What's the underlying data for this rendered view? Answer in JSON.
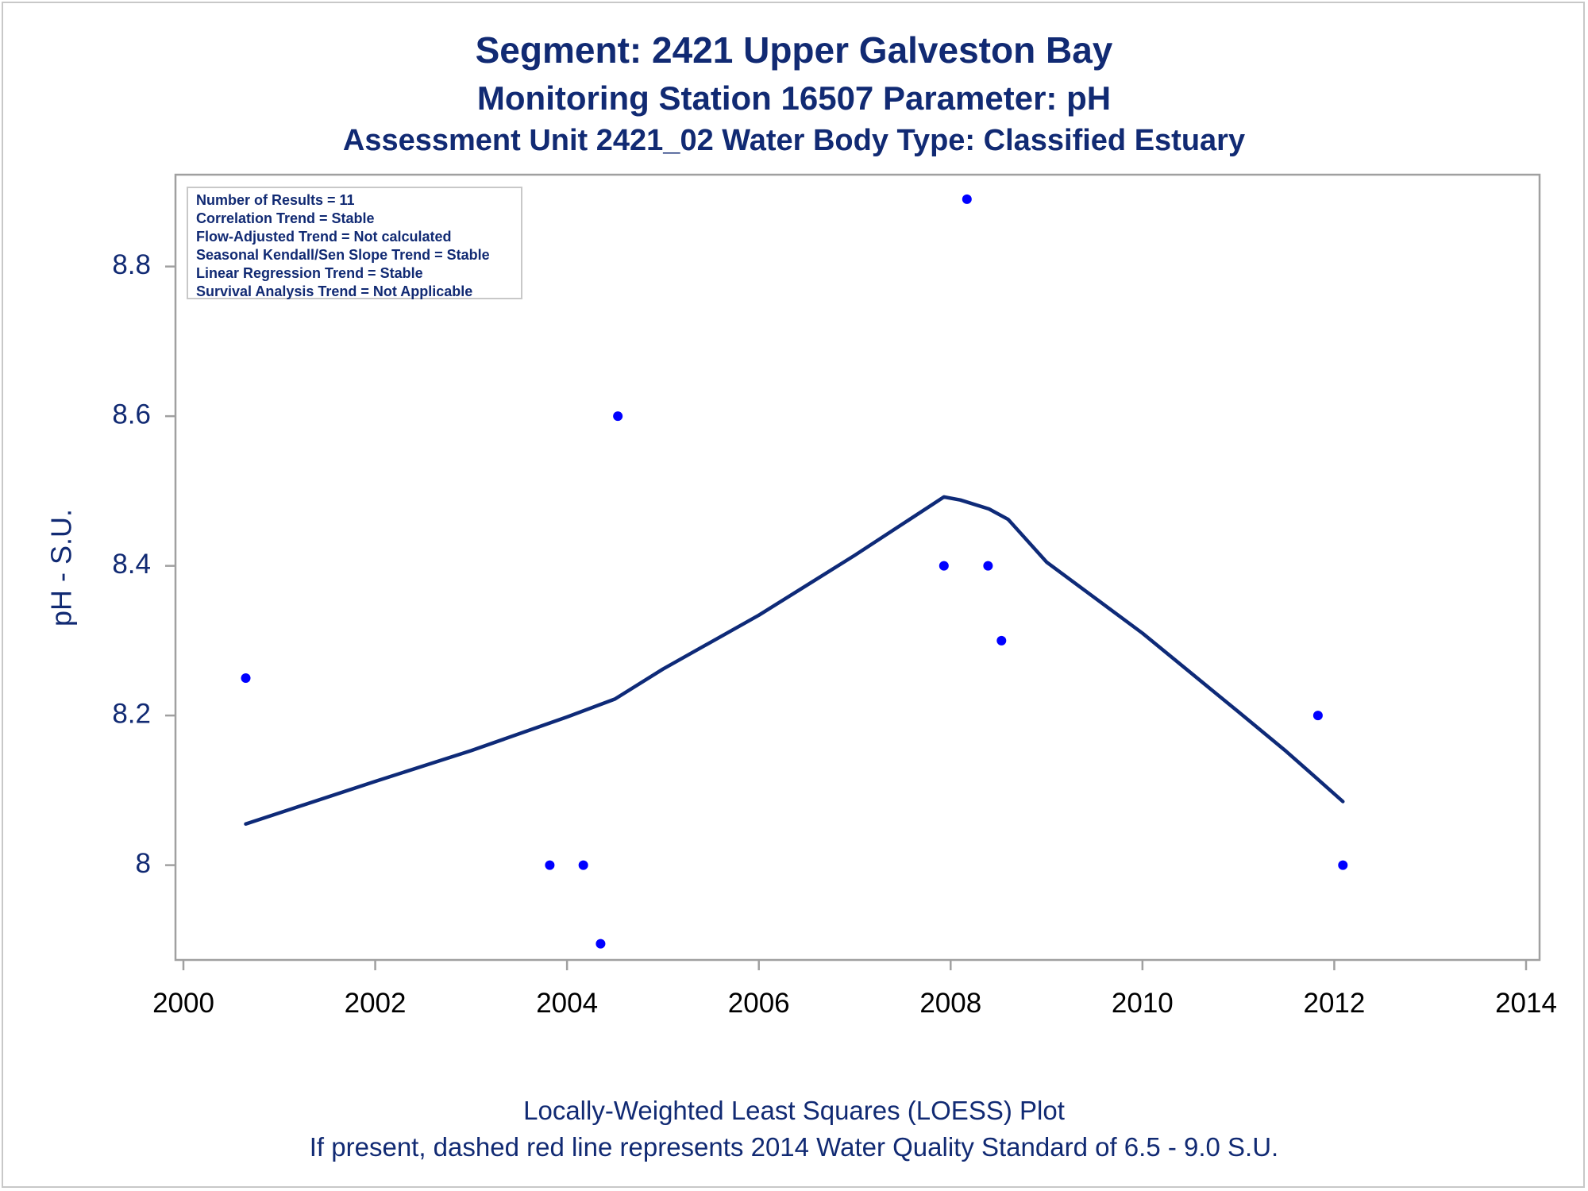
{
  "chart_data": {
    "type": "scatter",
    "title": "Segment: 2421  Upper Galveston Bay",
    "subtitle": "Monitoring Station 16507 Parameter: pH",
    "subtitle2": "Assessment Unit 2421_02   Water Body Type: Classified Estuary",
    "xlabel": "",
    "ylabel": "pH - S.U.",
    "footnote1": "Locally-Weighted Least Squares (LOESS) Plot",
    "footnote2": "If present, dashed red line represents 2014 Water Quality Standard of 6.5 - 9.0 S.U.",
    "xlim": [
      2000,
      2014
    ],
    "ylim": [
      7.885,
      8.91
    ],
    "x_ticks": [
      2000,
      2002,
      2004,
      2006,
      2008,
      2010,
      2012,
      2014
    ],
    "y_ticks": [
      8,
      8.2,
      8.4,
      8.6,
      8.8
    ],
    "y_tick_labels": [
      "8",
      "8.2",
      "8.4",
      "8.6",
      "8.8"
    ],
    "grid": false,
    "stats_box": [
      "Number of Results = 11",
      "Correlation Trend = Stable",
      "Flow-Adjusted Trend = Not calculated",
      "Seasonal Kendall/Sen Slope Trend = Stable",
      "Linear Regression Trend = Stable",
      "Survival Analysis Trend = Not Applicable"
    ],
    "points": [
      {
        "x": 2000.65,
        "y": 8.25
      },
      {
        "x": 2003.82,
        "y": 8.0
      },
      {
        "x": 2004.17,
        "y": 8.0
      },
      {
        "x": 2004.35,
        "y": 7.895
      },
      {
        "x": 2004.53,
        "y": 8.6
      },
      {
        "x": 2007.93,
        "y": 8.4
      },
      {
        "x": 2008.17,
        "y": 8.89
      },
      {
        "x": 2008.39,
        "y": 8.4
      },
      {
        "x": 2008.53,
        "y": 8.3
      },
      {
        "x": 2011.83,
        "y": 8.2
      },
      {
        "x": 2012.09,
        "y": 8.0
      }
    ],
    "loess_curve": [
      {
        "x": 2000.65,
        "y": 8.055
      },
      {
        "x": 2002.0,
        "y": 8.112
      },
      {
        "x": 2003.0,
        "y": 8.153
      },
      {
        "x": 2004.0,
        "y": 8.198
      },
      {
        "x": 2004.5,
        "y": 8.222
      },
      {
        "x": 2005.0,
        "y": 8.262
      },
      {
        "x": 2006.0,
        "y": 8.334
      },
      {
        "x": 2007.0,
        "y": 8.414
      },
      {
        "x": 2007.93,
        "y": 8.492
      },
      {
        "x": 2008.1,
        "y": 8.488
      },
      {
        "x": 2008.4,
        "y": 8.476
      },
      {
        "x": 2008.6,
        "y": 8.462
      },
      {
        "x": 2009.0,
        "y": 8.405
      },
      {
        "x": 2010.0,
        "y": 8.31
      },
      {
        "x": 2011.0,
        "y": 8.205
      },
      {
        "x": 2011.5,
        "y": 8.152
      },
      {
        "x": 2011.8,
        "y": 8.118
      },
      {
        "x": 2012.09,
        "y": 8.085
      }
    ],
    "colors": {
      "text": "#112a73",
      "line": "#0e2a78",
      "points": "#0000ff",
      "frame": "#a0a0a0"
    }
  }
}
